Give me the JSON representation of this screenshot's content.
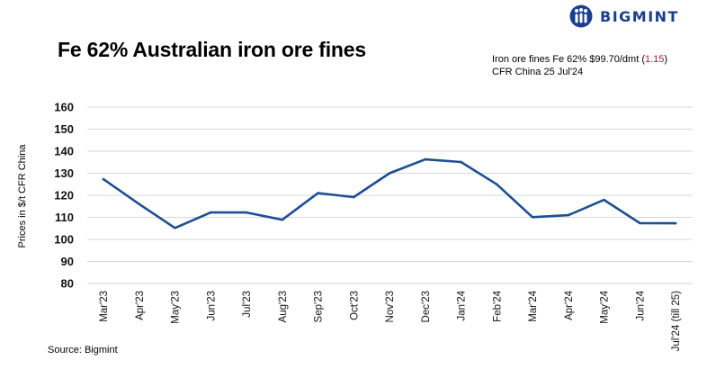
{
  "brand": {
    "name": "BIGMINT",
    "mark_color": "#1a3f8f"
  },
  "header": {
    "title": "Fe 62% Australian iron ore fines",
    "info_prefix": "Iron ore fines Fe 62% $99.70/dmt (",
    "info_change": "1.15",
    "info_suffix": ")",
    "info_line2": "CFR China  25 Jul'24"
  },
  "footer": {
    "source": "Source: Bigmint"
  },
  "colors": {
    "line": "#1d4f91",
    "change": "#c8102e",
    "grid": "#d9d9d9"
  },
  "chart_data": {
    "type": "line",
    "title": "Fe 62% Australian iron ore fines",
    "xlabel": "",
    "ylabel": "Prices in $/t CFR China",
    "ylim": [
      80,
      160
    ],
    "yticks": [
      80,
      90,
      100,
      110,
      120,
      130,
      140,
      150,
      160
    ],
    "grid": "horizontal",
    "legend": "none",
    "categories": [
      "Mar'23",
      "Apr'23",
      "May'23",
      "Jun'23",
      "Jul'23",
      "Aug'23",
      "Sep'23",
      "Oct'23",
      "Nov'23",
      "Dec'23",
      "Jan'24",
      "Feb'24",
      "Mar'24",
      "Apr'24",
      "May'24",
      "Jun'24",
      "Jul'24 (till 25)"
    ],
    "values": [
      127.3,
      116,
      105.2,
      112.2,
      112.2,
      108.9,
      121,
      119.2,
      130,
      136.3,
      135.1,
      125,
      110.1,
      111,
      117.9,
      107.4,
      107.3
    ]
  }
}
